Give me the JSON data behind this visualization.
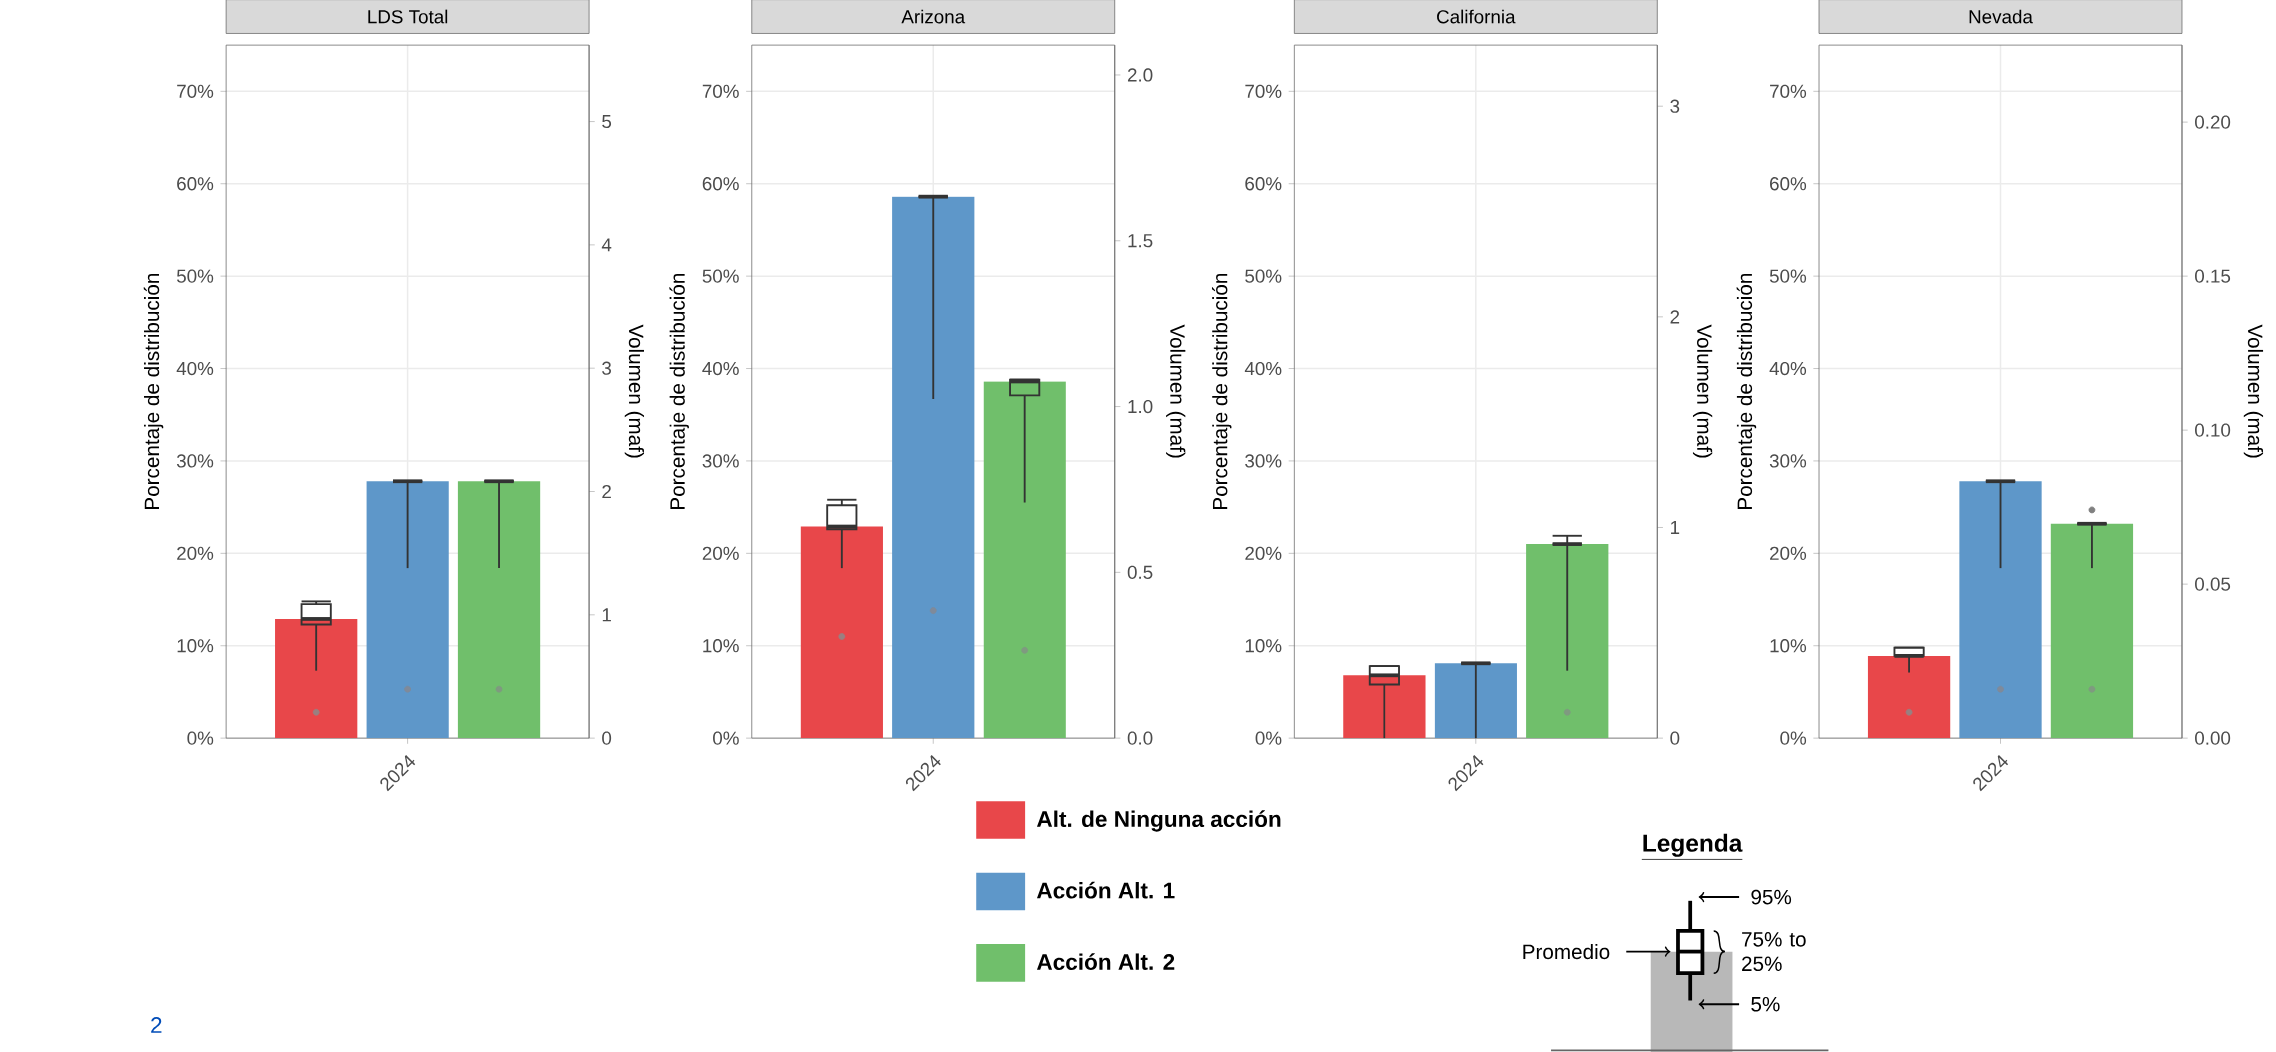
{
  "chart_data": [
    {
      "type": "bar",
      "title": "LDS Total",
      "categories": [
        null,
        "2024",
        null
      ],
      "ylabel": "Porcentaje de distribución",
      "y2label": "Volumen (maf)",
      "grid": true,
      "legend": "bottom",
      "annotations": [
        "2"
      ],
      "ylim": [
        0,
        75
      ],
      "yticks": [
        {
          "value": 0,
          "label": "0%"
        },
        {
          "value": 10,
          "label": "10%"
        },
        {
          "value": 20,
          "label": "20%"
        },
        {
          "value": 30,
          "label": "30%"
        },
        {
          "value": 40,
          "label": "40%"
        },
        {
          "value": 50,
          "label": "50%"
        },
        {
          "value": 60,
          "label": "60%"
        },
        {
          "value": 70,
          "label": "70%"
        }
      ],
      "y2lim": [
        0,
        5.62
      ],
      "y2ticks": [
        0,
        1,
        2,
        3,
        4,
        5
      ],
      "series": [
        {
          "name": "Alt. de Ninguna acción",
          "color": "#e8474a",
          "values": [
            12.9,
            null,
            null
          ]
        },
        {
          "name": "Acción Alt. 1",
          "color": "#5e97c9",
          "values": [
            null,
            27.8,
            null
          ]
        },
        {
          "name": "Acción Alt. 2",
          "color": "#70bf6b",
          "values": [
            null,
            null,
            27.8
          ]
        },
        {
          "type": "box",
          "color": "#333333",
          "boxes": [
            {
              "low": 7.3,
              "q1": 12.3,
              "median": 12.9,
              "q3": 14.5,
              "high": 14.8
            },
            {
              "low": 18.4,
              "q1": 27.8,
              "median": 27.8,
              "q3": 27.8,
              "high": 27.8
            },
            {
              "low": 18.4,
              "q1": 27.8,
              "median": 27.8,
              "q3": 27.8,
              "high": 27.8
            }
          ]
        },
        {
          "type": "scatter",
          "colors": [
            "#9a7f80",
            "#7f8a9a",
            "#7f9a80"
          ],
          "values": [
            2.8,
            5.3,
            5.3
          ]
        }
      ]
    },
    {
      "type": "bar",
      "title": "Arizona",
      "categories": [
        null,
        "2024",
        null
      ],
      "ylabel": "Porcentaje de distribución",
      "y2label": "Volumen (maf)",
      "grid": true,
      "ylim": [
        0,
        75
      ],
      "yticks": [
        {
          "value": 0,
          "label": "0%"
        },
        {
          "value": 10,
          "label": "10%"
        },
        {
          "value": 20,
          "label": "20%"
        },
        {
          "value": 30,
          "label": "30%"
        },
        {
          "value": 40,
          "label": "40%"
        },
        {
          "value": 50,
          "label": "50%"
        },
        {
          "value": 60,
          "label": "60%"
        },
        {
          "value": 70,
          "label": "70%"
        }
      ],
      "y2lim": [
        0,
        2.09
      ],
      "y2ticks": [
        {
          "value": 0,
          "label": "0.0"
        },
        {
          "value": 0.5,
          "label": "0.5"
        },
        {
          "value": 1,
          "label": "1.0"
        },
        {
          "value": 1.5,
          "label": "1.5"
        },
        {
          "value": 2,
          "label": "2.0"
        }
      ],
      "series": [
        {
          "color": "#e8474a",
          "values": [
            22.9,
            null,
            null
          ]
        },
        {
          "color": "#5e97c9",
          "values": [
            null,
            58.6,
            null
          ]
        },
        {
          "color": "#70bf6b",
          "values": [
            null,
            null,
            38.6
          ]
        },
        {
          "type": "box",
          "color": "#333333",
          "boxes": [
            {
              "low": 18.4,
              "q1": 22.6,
              "median": 22.9,
              "q3": 25.2,
              "high": 25.8
            },
            {
              "low": 36.7,
              "q1": 58.6,
              "median": 58.6,
              "q3": 58.6,
              "high": 58.6
            },
            {
              "low": 25.5,
              "q1": 37.1,
              "median": 38.6,
              "q3": 38.8,
              "high": 38.8
            }
          ]
        },
        {
          "type": "scatter",
          "colors": [
            "#9a7f80",
            "#7f8a9a",
            "#7f9a80"
          ],
          "values": [
            11.0,
            13.8,
            9.5
          ]
        }
      ]
    },
    {
      "type": "bar",
      "title": "California",
      "categories": [
        null,
        "2024",
        null
      ],
      "ylabel": "Porcentaje de distribución",
      "y2label": "Volumen (maf)",
      "grid": true,
      "ylim": [
        0,
        75
      ],
      "yticks": [
        {
          "value": 0,
          "label": "0%"
        },
        {
          "value": 10,
          "label": "10%"
        },
        {
          "value": 20,
          "label": "20%"
        },
        {
          "value": 30,
          "label": "30%"
        },
        {
          "value": 40,
          "label": "40%"
        },
        {
          "value": 50,
          "label": "50%"
        },
        {
          "value": 60,
          "label": "60%"
        },
        {
          "value": 70,
          "label": "70%"
        }
      ],
      "y2lim": [
        0,
        3.29
      ],
      "y2ticks": [
        0,
        1,
        2,
        3
      ],
      "series": [
        {
          "color": "#e8474a",
          "values": [
            6.8,
            null,
            null
          ]
        },
        {
          "color": "#5e97c9",
          "values": [
            null,
            8.1,
            null
          ]
        },
        {
          "color": "#70bf6b",
          "values": [
            null,
            null,
            21.0
          ]
        },
        {
          "type": "box",
          "color": "#333333",
          "boxes": [
            {
              "low": 0,
              "q1": 5.8,
              "median": 6.8,
              "q3": 7.8,
              "high": 7.8
            },
            {
              "low": 0,
              "q1": 8.1,
              "median": 8.1,
              "q3": 8.1,
              "high": 8.1
            },
            {
              "low": 7.3,
              "q1": 21.0,
              "median": 21.0,
              "q3": 21.0,
              "high": 21.9
            }
          ]
        },
        {
          "type": "scatter",
          "colors": [
            "#9a7f80",
            "#7f8a9a",
            "#7f9a80"
          ],
          "values": [
            null,
            null,
            2.8
          ]
        }
      ]
    },
    {
      "type": "bar",
      "title": "Nevada",
      "categories": [
        null,
        "2024",
        null
      ],
      "ylabel": "Porcentaje de distribución",
      "y2label": "Volumen (maf)",
      "grid": true,
      "ylim": [
        0,
        75
      ],
      "yticks": [
        {
          "value": 0,
          "label": "0%"
        },
        {
          "value": 10,
          "label": "10%"
        },
        {
          "value": 20,
          "label": "20%"
        },
        {
          "value": 30,
          "label": "30%"
        },
        {
          "value": 40,
          "label": "40%"
        },
        {
          "value": 50,
          "label": "50%"
        },
        {
          "value": 60,
          "label": "60%"
        },
        {
          "value": 70,
          "label": "70%"
        }
      ],
      "y2lim": [
        0,
        0.225
      ],
      "y2ticks": [
        {
          "value": 0,
          "label": "0.00"
        },
        {
          "value": 0.05,
          "label": "0.05"
        },
        {
          "value": 0.1,
          "label": "0.10"
        },
        {
          "value": 0.15,
          "label": "0.15"
        },
        {
          "value": 0.2,
          "label": "0.20"
        }
      ],
      "series": [
        {
          "color": "#e8474a",
          "values": [
            8.9,
            null,
            null
          ]
        },
        {
          "color": "#5e97c9",
          "values": [
            null,
            27.8,
            null
          ]
        },
        {
          "color": "#70bf6b",
          "values": [
            null,
            null,
            23.2
          ]
        },
        {
          "type": "box",
          "color": "#333333",
          "boxes": [
            {
              "low": 7.1,
              "q1": 8.9,
              "median": 8.9,
              "q3": 9.8,
              "high": 9.8
            },
            {
              "low": 18.4,
              "q1": 27.8,
              "median": 27.8,
              "q3": 27.8,
              "high": 27.8
            },
            {
              "low": 18.4,
              "q1": 23.2,
              "median": 23.2,
              "q3": 23.2,
              "high": 23.2,
              "outliers": [
                24.7
              ]
            }
          ]
        },
        {
          "type": "scatter",
          "colors": [
            "#9a7f80",
            "#7f8a9a",
            "#7f9a80"
          ],
          "values": [
            2.8,
            5.3,
            5.3
          ]
        }
      ]
    },
    {
      "type": "other",
      "title": "Legenda",
      "annotations": [
        "Promedio",
        "95%",
        "75% to 25%",
        "5%"
      ]
    }
  ]
}
